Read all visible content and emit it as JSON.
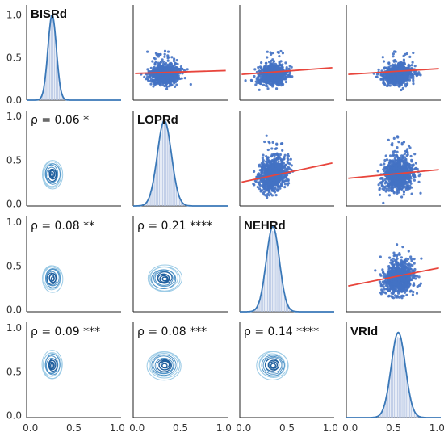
{
  "chart_data": {
    "type": "pairplot",
    "variables": [
      "BISRd",
      "LOPRd",
      "NEHRd",
      "VRId"
    ],
    "axis_range": [
      0,
      1
    ],
    "diag_y_ticks": [
      "0.0",
      "0.5",
      "1.0"
    ],
    "x_ticks": [
      "0.0",
      "0.5",
      "1.0"
    ],
    "distributions": [
      {
        "name": "BISRd",
        "mean": 0.27,
        "sd": 0.045
      },
      {
        "name": "LOPRd",
        "mean": 0.33,
        "sd": 0.075
      },
      {
        "name": "NEHRd",
        "mean": 0.35,
        "sd": 0.07
      },
      {
        "name": "VRId",
        "mean": 0.55,
        "sd": 0.075
      }
    ],
    "correlations": [
      {
        "row": 1,
        "col": 0,
        "label": "ρ = 0.06 *"
      },
      {
        "row": 2,
        "col": 0,
        "label": "ρ = 0.08 **"
      },
      {
        "row": 2,
        "col": 1,
        "label": "ρ = 0.21 ****"
      },
      {
        "row": 3,
        "col": 0,
        "label": "ρ = 0.09 ***"
      },
      {
        "row": 3,
        "col": 1,
        "label": "ρ = 0.08 ***"
      },
      {
        "row": 3,
        "col": 2,
        "label": "ρ = 0.14 ****"
      }
    ],
    "regression_lines": [
      {
        "row": 0,
        "col": 1,
        "x": [
          0.0,
          1.0
        ],
        "y": [
          0.28,
          0.31
        ]
      },
      {
        "row": 0,
        "col": 2,
        "x": [
          0.0,
          1.0
        ],
        "y": [
          0.27,
          0.34
        ]
      },
      {
        "row": 0,
        "col": 3,
        "x": [
          0.0,
          1.0
        ],
        "y": [
          0.27,
          0.33
        ]
      },
      {
        "row": 1,
        "col": 2,
        "x": [
          0.0,
          1.0
        ],
        "y": [
          0.25,
          0.45
        ]
      },
      {
        "row": 1,
        "col": 3,
        "x": [
          0.0,
          1.0
        ],
        "y": [
          0.29,
          0.38
        ]
      },
      {
        "row": 2,
        "col": 3,
        "x": [
          0.0,
          1.0
        ],
        "y": [
          0.27,
          0.46
        ]
      }
    ],
    "scatter_color": "#4472c4",
    "line_color": "#e8453c",
    "kde_color": "#3a78b8",
    "hist_color": "#aebfe0"
  }
}
